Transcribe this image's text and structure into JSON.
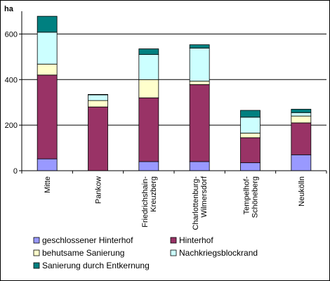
{
  "chart_data": {
    "type": "bar",
    "stacked": true,
    "ylabel": "ha",
    "ylim": [
      0,
      700
    ],
    "yticks": [
      0,
      200,
      400,
      600
    ],
    "grid": true,
    "legend_position": "bottom",
    "categories": [
      [
        "Mitte"
      ],
      [
        "Pankow"
      ],
      [
        "Friedrichshain-",
        "Kreuzberg"
      ],
      [
        "Charlottenburg-",
        "Wilmersdorf"
      ],
      [
        "Tempelhof-",
        "Schöneberg"
      ],
      [
        "Neukölln"
      ]
    ],
    "series": [
      {
        "name": "geschlossener Hinterhof",
        "color": "#9999FF",
        "values": [
          52,
          0,
          40,
          40,
          35,
          70
        ]
      },
      {
        "name": "Hinterhof",
        "color": "#993366",
        "values": [
          368,
          280,
          280,
          338,
          110,
          140
        ]
      },
      {
        "name": "behutsame Sanierung",
        "color": "#FFFFCC",
        "values": [
          48,
          28,
          80,
          15,
          20,
          30
        ]
      },
      {
        "name": "Nachkriegsblockrand",
        "color": "#CCFFFF",
        "values": [
          140,
          25,
          110,
          145,
          70,
          15
        ]
      },
      {
        "name": "Sanierung durch Entkernung",
        "color": "#008080",
        "values": [
          70,
          2,
          25,
          15,
          30,
          15
        ]
      }
    ]
  }
}
